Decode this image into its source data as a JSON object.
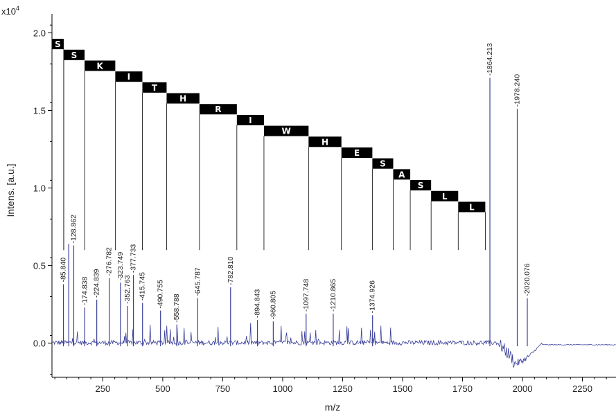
{
  "chart_data": {
    "type": "line",
    "xlabel": "m/z",
    "ylabel": "Intens. [a.u.]",
    "y_multiplier_label": "x10",
    "y_multiplier_exp": "4",
    "xlim": [
      38,
      2390
    ],
    "ylim": [
      -0.22,
      2.1
    ],
    "x_ticks": [
      {
        "value": 250,
        "label": "250"
      },
      {
        "value": 500,
        "label": "500"
      },
      {
        "value": 750,
        "label": "750"
      },
      {
        "value": 1000,
        "label": "1000"
      },
      {
        "value": 1250,
        "label": "1250"
      },
      {
        "value": 1500,
        "label": "1500"
      },
      {
        "value": 1750,
        "label": "1750"
      },
      {
        "value": 2000,
        "label": "2000"
      },
      {
        "value": 2250,
        "label": "2250"
      }
    ],
    "y_ticks": [
      {
        "value": 0.0,
        "label": "0.0"
      },
      {
        "value": 0.5,
        "label": "0.5"
      },
      {
        "value": 1.0,
        "label": "1.0"
      },
      {
        "value": 1.5,
        "label": "1.5"
      },
      {
        "value": 2.0,
        "label": "2.0"
      }
    ],
    "series_color": "#3a3f9a",
    "peaks": [
      {
        "mz": 85.84,
        "label": "85.840",
        "intensity": 0.38
      },
      {
        "mz": 108.0,
        "label": "",
        "intensity": 0.64
      },
      {
        "mz": 128.862,
        "label": "128.862",
        "intensity": 0.63
      },
      {
        "mz": 174.838,
        "label": "174.838",
        "intensity": 0.23
      },
      {
        "mz": 224.839,
        "label": "224.839",
        "intensity": 0.28
      },
      {
        "mz": 276.782,
        "label": "276.782",
        "intensity": 0.42
      },
      {
        "mz": 323.749,
        "label": "323.749",
        "intensity": 0.39
      },
      {
        "mz": 352.763,
        "label": "352.763",
        "intensity": 0.24
      },
      {
        "mz": 377.733,
        "label": "377.733",
        "intensity": 0.44
      },
      {
        "mz": 415.745,
        "label": "415.745",
        "intensity": 0.26
      },
      {
        "mz": 490.755,
        "label": "490.755",
        "intensity": 0.21
      },
      {
        "mz": 558.788,
        "label": "558.788",
        "intensity": 0.12
      },
      {
        "mz": 645.787,
        "label": "645.787",
        "intensity": 0.29
      },
      {
        "mz": 782.81,
        "label": "782.810",
        "intensity": 0.36
      },
      {
        "mz": 894.843,
        "label": "894.843",
        "intensity": 0.15
      },
      {
        "mz": 960.805,
        "label": "960.805",
        "intensity": 0.14
      },
      {
        "mz": 1097.748,
        "label": "1097.748",
        "intensity": 0.19
      },
      {
        "mz": 1210.865,
        "label": "1210.865",
        "intensity": 0.19
      },
      {
        "mz": 1374.926,
        "label": "1374.926",
        "intensity": 0.18
      },
      {
        "mz": 1864.213,
        "label": "1864.213",
        "intensity": 1.71
      },
      {
        "mz": 1978.24,
        "label": "1978.240",
        "intensity": 1.51
      },
      {
        "mz": 2020.076,
        "label": "2020.076",
        "intensity": 0.29
      }
    ],
    "sequence_ladder": [
      {
        "residue": "S",
        "start_mz": 38,
        "y": 1.93
      },
      {
        "residue": "S",
        "start_mz": 87,
        "y": 1.86
      },
      {
        "residue": "K",
        "start_mz": 174,
        "y": 1.79
      },
      {
        "residue": "I",
        "start_mz": 302,
        "y": 1.72
      },
      {
        "residue": "T",
        "start_mz": 415,
        "y": 1.65
      },
      {
        "residue": "H",
        "start_mz": 516,
        "y": 1.58
      },
      {
        "residue": "R",
        "start_mz": 653,
        "y": 1.51
      },
      {
        "residue": "I",
        "start_mz": 809,
        "y": 1.44
      },
      {
        "residue": "W",
        "start_mz": 922,
        "y": 1.37
      },
      {
        "residue": "H",
        "start_mz": 1108,
        "y": 1.3
      },
      {
        "residue": "E",
        "start_mz": 1245,
        "y": 1.23
      },
      {
        "residue": "S",
        "start_mz": 1374,
        "y": 1.16
      },
      {
        "residue": "A",
        "start_mz": 1461,
        "y": 1.09
      },
      {
        "residue": "S",
        "start_mz": 1532,
        "y": 1.02
      },
      {
        "residue": "L",
        "start_mz": 1619,
        "y": 0.95
      },
      {
        "residue": "L",
        "start_mz": 1732,
        "y": 0.88
      },
      {
        "residue": "",
        "start_mz": 1845,
        "y": 0.88
      }
    ]
  }
}
